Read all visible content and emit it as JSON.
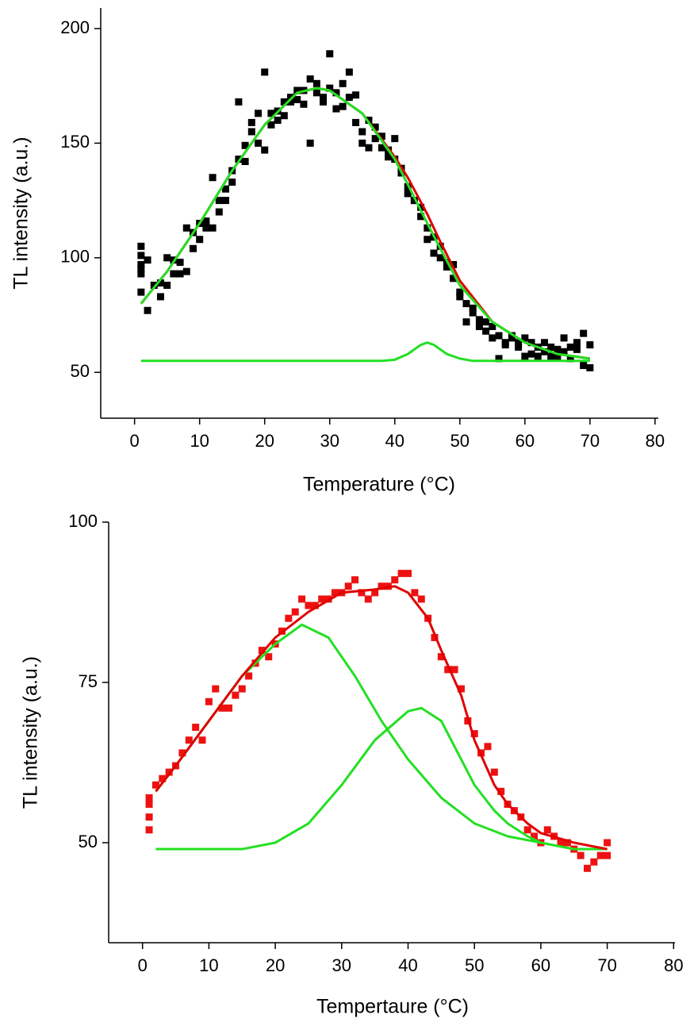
{
  "chart_data": [
    {
      "type": "scatter",
      "x_label": "Temperature (°C)",
      "y_label": "TL intensity (a.u.)",
      "xlim": [
        -5.2,
        80.5
      ],
      "ylim": [
        30,
        209
      ],
      "xticks": [
        0,
        10,
        20,
        30,
        40,
        50,
        60,
        70,
        80
      ],
      "yticks": [
        50,
        100,
        150,
        200
      ],
      "series": [
        {
          "type": "scatter",
          "color": "#000000",
          "x": [
            1,
            1,
            1,
            1,
            1,
            1,
            2,
            2,
            3,
            4,
            4,
            5,
            5,
            6,
            6,
            7,
            7,
            8,
            8,
            9,
            9,
            10,
            10,
            11,
            11,
            12,
            12,
            13,
            13,
            14,
            14,
            15,
            15,
            16,
            16,
            17,
            17,
            18,
            18,
            19,
            19,
            20,
            20,
            21,
            21,
            22,
            22,
            23,
            23,
            24,
            24,
            25,
            25,
            26,
            26,
            27,
            27,
            28,
            28,
            29,
            29,
            30,
            30,
            31,
            31,
            32,
            32,
            33,
            33,
            34,
            34,
            35,
            35,
            36,
            36,
            37,
            37,
            38,
            38,
            39,
            39,
            40,
            40,
            41,
            41,
            42,
            42,
            43,
            43,
            44,
            44,
            45,
            45,
            46,
            46,
            47,
            47,
            48,
            48,
            49,
            49,
            50,
            50,
            51,
            51,
            52,
            52,
            53,
            53,
            54,
            54,
            55,
            55,
            56,
            56,
            57,
            57,
            58,
            58,
            59,
            59,
            60,
            60,
            61,
            61,
            62,
            62,
            63,
            63,
            64,
            64,
            65,
            65,
            66,
            66,
            67,
            67,
            68,
            68,
            69,
            69,
            70,
            70
          ],
          "values": [
            95,
            85,
            101,
            105,
            93,
            97,
            77,
            99,
            88,
            83,
            89,
            100,
            88,
            93,
            99,
            93,
            98,
            94,
            113,
            111,
            104,
            115,
            108,
            113,
            116,
            135,
            113,
            120,
            125,
            130,
            125,
            138,
            133,
            168,
            143,
            142,
            149,
            155,
            159,
            163,
            150,
            181,
            147,
            158,
            163,
            160,
            164,
            162,
            168,
            170,
            168,
            173,
            169,
            167,
            173,
            150,
            178,
            172,
            176,
            170,
            168,
            189,
            174,
            165,
            172,
            176,
            166,
            181,
            170,
            171,
            159,
            150,
            155,
            160,
            148,
            157,
            152,
            153,
            148,
            147,
            144,
            143,
            152,
            139,
            137,
            131,
            128,
            125,
            125,
            122,
            118,
            108,
            113,
            109,
            102,
            100,
            105,
            98,
            96,
            91,
            97,
            85,
            83,
            72,
            80,
            78,
            76,
            73,
            70,
            72,
            68,
            65,
            70,
            56,
            66,
            63,
            62,
            65,
            66,
            61,
            63,
            57,
            65,
            58,
            63,
            57,
            61,
            59,
            63,
            57,
            61,
            60,
            57,
            59,
            65,
            61,
            56,
            63,
            60,
            53,
            67,
            52,
            62
          ]
        },
        {
          "type": "line",
          "color": "#e00000",
          "x": [
            1,
            5,
            10,
            15,
            20,
            25,
            28,
            30,
            35,
            40,
            42,
            45,
            47,
            50,
            55,
            60,
            65,
            70
          ],
          "values": [
            80,
            94,
            115,
            138,
            158,
            172,
            174,
            173,
            163,
            144,
            135,
            119,
            107,
            90,
            72,
            63,
            58,
            56
          ]
        },
        {
          "type": "line",
          "color": "#22e022",
          "x": [
            1,
            5,
            10,
            15,
            20,
            25,
            28,
            30,
            35,
            40,
            42,
            45,
            47,
            50,
            55,
            60,
            65,
            70
          ],
          "values": [
            80,
            94,
            115,
            138,
            158,
            172,
            174,
            173,
            163,
            143,
            132,
            115,
            104,
            88,
            72,
            63,
            58,
            56
          ]
        },
        {
          "type": "line",
          "color": "#22e022",
          "x": [
            1,
            10,
            20,
            30,
            38,
            40,
            42,
            44,
            45,
            46,
            48,
            50,
            52,
            60,
            70
          ],
          "values": [
            55,
            55,
            55,
            55,
            55,
            55.5,
            58,
            62,
            63,
            62,
            58,
            56,
            55,
            55,
            55
          ]
        }
      ]
    },
    {
      "type": "scatter",
      "x_label": "Tempertaure (°C)",
      "y_label": "TL intensity (a.u.)",
      "xlim": [
        -5.1,
        80.2
      ],
      "ylim": [
        34.4,
        100
      ],
      "xticks": [
        0,
        10,
        20,
        30,
        40,
        50,
        60,
        70,
        80
      ],
      "yticks": [
        50,
        75,
        100
      ],
      "series": [
        {
          "type": "scatter",
          "color": "#ee1111",
          "x": [
            1,
            1,
            1,
            1,
            2,
            3,
            4,
            5,
            6,
            7,
            8,
            9,
            10,
            11,
            12,
            13,
            14,
            15,
            16,
            17,
            18,
            19,
            20,
            21,
            22,
            23,
            24,
            25,
            26,
            27,
            28,
            29,
            30,
            31,
            32,
            33,
            34,
            35,
            36,
            37,
            38,
            39,
            40,
            41,
            42,
            43,
            44,
            45,
            46,
            47,
            48,
            49,
            50,
            51,
            52,
            53,
            54,
            55,
            56,
            57,
            58,
            59,
            60,
            61,
            62,
            63,
            64,
            65,
            66,
            67,
            68,
            69,
            70,
            70
          ],
          "values": [
            56,
            54,
            52,
            57,
            59,
            60,
            61,
            62,
            64,
            66,
            68,
            66,
            72,
            74,
            71,
            71,
            73,
            74,
            76,
            78,
            80,
            79,
            81,
            83,
            85,
            86,
            88,
            87,
            87,
            88,
            88,
            89,
            89,
            90,
            91,
            89,
            88,
            89,
            90,
            90,
            91,
            92,
            92,
            89,
            88,
            85,
            82,
            79,
            77,
            77,
            74,
            69,
            67,
            64,
            65,
            61,
            58,
            56,
            55,
            54,
            52,
            51,
            50,
            52,
            51,
            50,
            50,
            49,
            48,
            46,
            47,
            48,
            50,
            48
          ]
        },
        {
          "type": "line",
          "color": "#22e022",
          "x": [
            2,
            5,
            10,
            15,
            20,
            24,
            28,
            32,
            36,
            40,
            45,
            50,
            55,
            60,
            65,
            70
          ],
          "values": [
            58,
            62,
            69,
            76,
            81,
            84,
            82,
            76,
            69,
            63,
            57,
            53,
            51,
            50,
            49,
            49
          ]
        },
        {
          "type": "line",
          "color": "#22e022",
          "x": [
            2,
            10,
            15,
            20,
            25,
            30,
            35,
            40,
            42,
            45,
            48,
            50,
            53,
            55,
            58,
            60,
            65,
            70
          ],
          "values": [
            49,
            49,
            49,
            50,
            53,
            59,
            66,
            70.5,
            71,
            69,
            63,
            59,
            55,
            53,
            51,
            50,
            49,
            49
          ]
        },
        {
          "type": "line",
          "color": "#e00000",
          "x": [
            2,
            5,
            10,
            15,
            20,
            25,
            30,
            35,
            38,
            40,
            43,
            45,
            48,
            50,
            53,
            55,
            58,
            60,
            65,
            70
          ],
          "values": [
            58,
            62,
            69,
            76,
            82,
            86,
            89,
            89.5,
            90,
            89,
            85,
            80,
            73,
            66,
            59,
            56,
            53,
            51.5,
            50,
            49
          ]
        }
      ]
    }
  ]
}
